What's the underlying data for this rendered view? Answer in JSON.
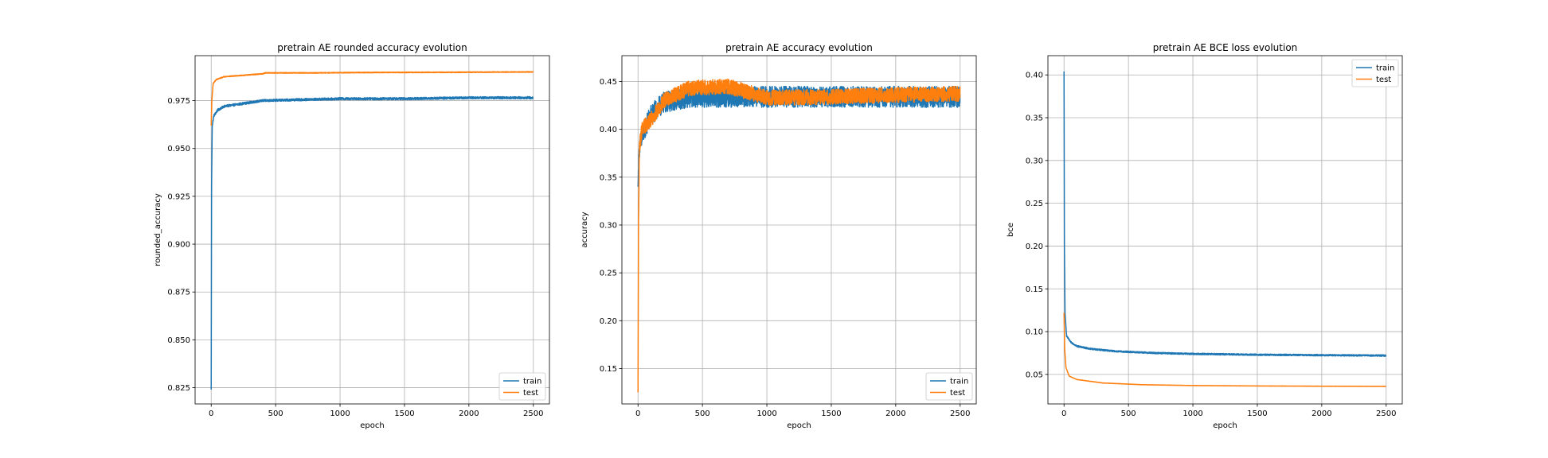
{
  "chart_data": [
    {
      "type": "line",
      "title": "pretrain AE rounded accuracy evolution",
      "xlabel": "epoch",
      "ylabel": "rounded_accuracy",
      "xlim": [
        -125,
        2625
      ],
      "ylim": [
        0.8165,
        0.9985
      ],
      "xticks": [
        0,
        500,
        1000,
        1500,
        2000,
        2500
      ],
      "xtick_labels": [
        "0",
        "500",
        "1000",
        "1500",
        "2000",
        "2500"
      ],
      "yticks": [
        0.825,
        0.85,
        0.875,
        0.9,
        0.925,
        0.95,
        0.975
      ],
      "ytick_labels": [
        "0.825",
        "0.850",
        "0.875",
        "0.900",
        "0.925",
        "0.950",
        "0.975"
      ],
      "grid": true,
      "legend_position": "lower-right",
      "series": [
        {
          "name": "train",
          "color": "#1f77b4",
          "points": [
            [
              0,
              0.824
            ],
            [
              3,
              0.93
            ],
            [
              8,
              0.962
            ],
            [
              20,
              0.967
            ],
            [
              50,
              0.97
            ],
            [
              100,
              0.972
            ],
            [
              200,
              0.973
            ],
            [
              400,
              0.975
            ],
            [
              700,
              0.9755
            ],
            [
              1000,
              0.976
            ],
            [
              1500,
              0.976
            ],
            [
              2000,
              0.9765
            ],
            [
              2500,
              0.9765
            ]
          ],
          "noise": 0.0006
        },
        {
          "name": "test",
          "color": "#ff7f0e",
          "points": [
            [
              0,
              0.962
            ],
            [
              5,
              0.975
            ],
            [
              15,
              0.984
            ],
            [
              40,
              0.986
            ],
            [
              100,
              0.9875
            ],
            [
              300,
              0.9885
            ],
            [
              400,
              0.989
            ],
            [
              420,
              0.9895
            ],
            [
              800,
              0.9895
            ],
            [
              1200,
              0.9897
            ],
            [
              1800,
              0.9898
            ],
            [
              2500,
              0.99
            ]
          ],
          "noise": 0.0002
        }
      ]
    },
    {
      "type": "line",
      "title": "pretrain AE accuracy evolution",
      "xlabel": "epoch",
      "ylabel": "accuracy",
      "xlim": [
        -125,
        2625
      ],
      "ylim": [
        0.113,
        0.477
      ],
      "xticks": [
        0,
        500,
        1000,
        1500,
        2000,
        2500
      ],
      "xtick_labels": [
        "0",
        "500",
        "1000",
        "1500",
        "2000",
        "2500"
      ],
      "yticks": [
        0.15,
        0.2,
        0.25,
        0.3,
        0.35,
        0.4,
        0.45
      ],
      "ytick_labels": [
        "0.15",
        "0.20",
        "0.25",
        "0.30",
        "0.35",
        "0.40",
        "0.45"
      ],
      "grid": true,
      "legend_position": "lower-right",
      "series": [
        {
          "name": "train",
          "color": "#1f77b4",
          "points": [
            [
              0,
              0.34
            ],
            [
              10,
              0.38
            ],
            [
              50,
              0.4
            ],
            [
              100,
              0.415
            ],
            [
              200,
              0.428
            ],
            [
              400,
              0.434
            ],
            [
              1000,
              0.434
            ],
            [
              2500,
              0.434
            ]
          ],
          "noise": 0.011
        },
        {
          "name": "test",
          "color": "#ff7f0e",
          "points": [
            [
              0,
              0.125
            ],
            [
              4,
              0.3
            ],
            [
              10,
              0.38
            ],
            [
              30,
              0.4
            ],
            [
              100,
              0.41
            ],
            [
              200,
              0.43
            ],
            [
              400,
              0.443
            ],
            [
              700,
              0.445
            ],
            [
              1000,
              0.433
            ],
            [
              1500,
              0.434
            ],
            [
              2000,
              0.436
            ],
            [
              2500,
              0.437
            ]
          ],
          "noise": 0.008
        }
      ]
    },
    {
      "type": "line",
      "title": "pretrain AE BCE loss evolution",
      "xlabel": "epoch",
      "ylabel": "bce",
      "xlim": [
        -125,
        2625
      ],
      "ylim": [
        0.0155,
        0.4225
      ],
      "xticks": [
        0,
        500,
        1000,
        1500,
        2000,
        2500
      ],
      "xtick_labels": [
        "0",
        "500",
        "1000",
        "1500",
        "2000",
        "2500"
      ],
      "yticks": [
        0.05,
        0.1,
        0.15,
        0.2,
        0.25,
        0.3,
        0.35,
        0.4
      ],
      "ytick_labels": [
        "0.05",
        "0.10",
        "0.15",
        "0.20",
        "0.25",
        "0.30",
        "0.35",
        "0.40"
      ],
      "grid": true,
      "legend_position": "upper-right",
      "series": [
        {
          "name": "train",
          "color": "#1f77b4",
          "points": [
            [
              0,
              0.404
            ],
            [
              3,
              0.2
            ],
            [
              8,
              0.12
            ],
            [
              20,
              0.095
            ],
            [
              50,
              0.088
            ],
            [
              100,
              0.083
            ],
            [
              200,
              0.08
            ],
            [
              400,
              0.077
            ],
            [
              700,
              0.075
            ],
            [
              1000,
              0.074
            ],
            [
              1500,
              0.073
            ],
            [
              2000,
              0.0725
            ],
            [
              2500,
              0.072
            ]
          ],
          "noise": 0.0009
        },
        {
          "name": "test",
          "color": "#ff7f0e",
          "points": [
            [
              0,
              0.122
            ],
            [
              5,
              0.08
            ],
            [
              15,
              0.058
            ],
            [
              40,
              0.048
            ],
            [
              100,
              0.044
            ],
            [
              300,
              0.04
            ],
            [
              600,
              0.038
            ],
            [
              1000,
              0.037
            ],
            [
              1500,
              0.0365
            ],
            [
              2000,
              0.0362
            ],
            [
              2500,
              0.036
            ]
          ],
          "noise": 0.0001
        }
      ]
    }
  ]
}
